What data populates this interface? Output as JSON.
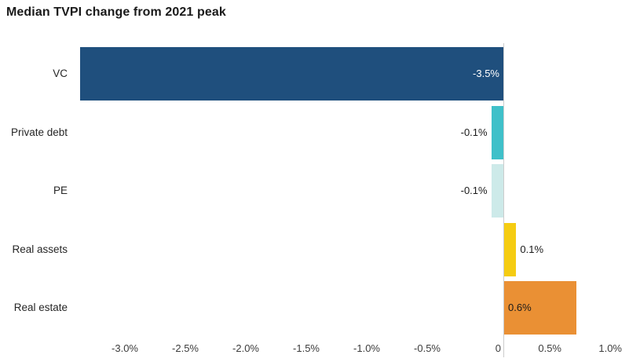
{
  "title": "Median TVPI change from 2021 peak",
  "chart_data": {
    "type": "bar",
    "orientation": "horizontal",
    "title": "Median TVPI change from 2021 peak",
    "xlabel": "",
    "ylabel": "",
    "categories": [
      "VC",
      "Private debt",
      "PE",
      "Real assets",
      "Real estate"
    ],
    "values": [
      -3.5,
      -0.1,
      -0.1,
      0.1,
      0.6
    ],
    "value_labels": [
      "-3.5%",
      "-0.1%",
      "-0.1%",
      "0.1%",
      "0.6%"
    ],
    "bar_colors": [
      "#1f4f7d",
      "#3fc0c9",
      "#cdeae9",
      "#f5cc12",
      "#ea9034"
    ],
    "value_label_colors": [
      "#ffffff",
      "#1a1a1a",
      "#1a1a1a",
      "#1a1a1a",
      "#1a1a1a"
    ],
    "xlim": [
      -3.5,
      1.0
    ],
    "x_ticks": [
      -3.0,
      -2.5,
      -2.0,
      -1.5,
      -1.0,
      -0.5,
      0,
      0.5,
      1.0
    ],
    "x_tick_labels": [
      "-3.0%",
      "-2.5%",
      "-2.0%",
      "-1.5%",
      "-1.0%",
      "-0.5%",
      "0",
      "0.5%",
      "1.0%"
    ],
    "grid": false,
    "legend": "none",
    "zero_line_color": "#cccccc",
    "background_color": "#ffffff"
  }
}
